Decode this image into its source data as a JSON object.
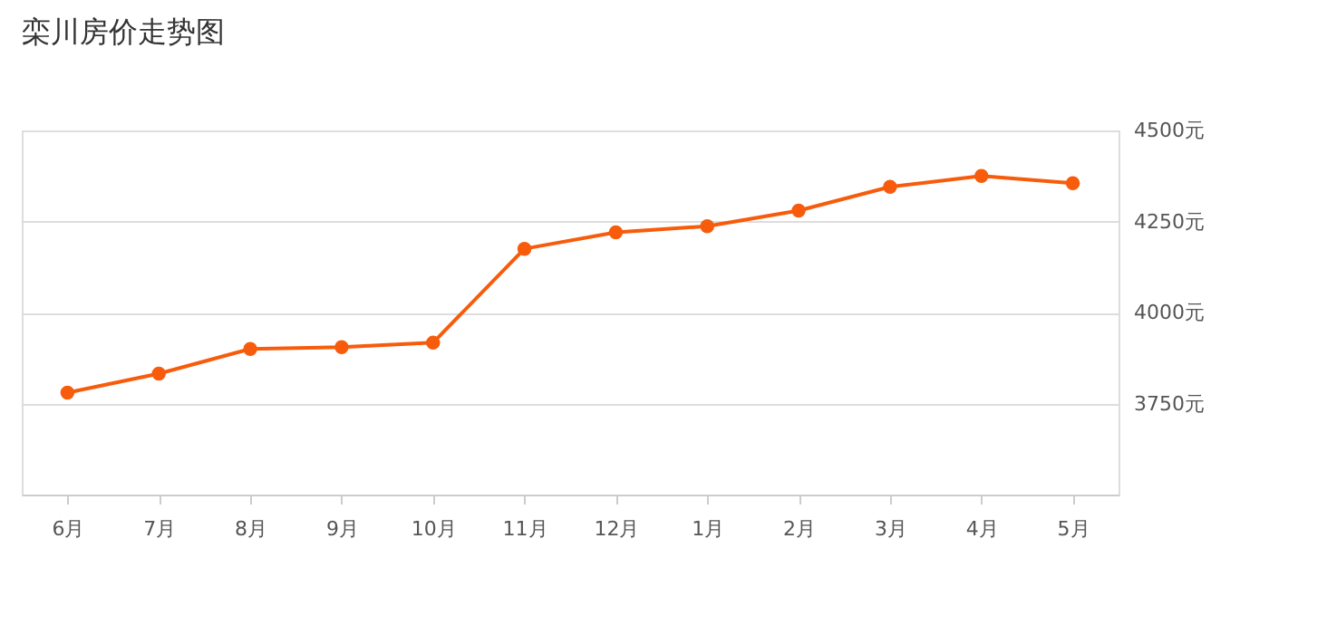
{
  "chart_data": {
    "type": "line",
    "title": "栾川房价走势图",
    "categories": [
      "6月",
      "7月",
      "8月",
      "9月",
      "10月",
      "11月",
      "12月",
      "1月",
      "2月",
      "3月",
      "4月",
      "5月"
    ],
    "series": [
      {
        "color": "#f75c0c",
        "values": [
          3780,
          3832,
          3900,
          3905,
          3917,
          4175,
          4220,
          4237,
          4280,
          4345,
          4375,
          4355
        ]
      }
    ],
    "ylim": [
      3500,
      4500
    ],
    "yticks": [
      {
        "value": 3750,
        "label": "3750元"
      },
      {
        "value": 4000,
        "label": "4000元"
      },
      {
        "value": 4250,
        "label": "4250元"
      },
      {
        "value": 4500,
        "label": "4500元"
      }
    ],
    "grid": "y",
    "marker": "circle",
    "line_style": "solid"
  }
}
